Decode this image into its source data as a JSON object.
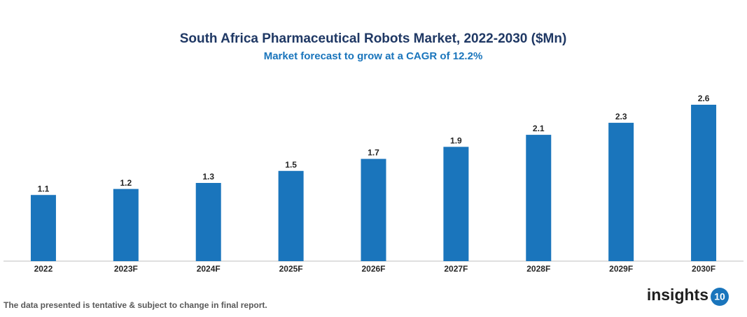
{
  "chart_data": {
    "type": "bar",
    "title": "South Africa Pharmaceutical Robots Market, 2022-2030 ($Mn)",
    "subtitle": "Market forecast to grow at a CAGR of 12.2%",
    "categories": [
      "2022",
      "2023F",
      "2024F",
      "2025F",
      "2026F",
      "2027F",
      "2028F",
      "2029F",
      "2030F"
    ],
    "values": [
      1.1,
      1.2,
      1.3,
      1.5,
      1.7,
      1.9,
      2.1,
      2.3,
      2.6
    ],
    "color": "#1a75bc"
  },
  "footer": {
    "note": "The data presented is tentative & subject to change in final report.",
    "logo_text": "insights",
    "logo_number": "10"
  }
}
